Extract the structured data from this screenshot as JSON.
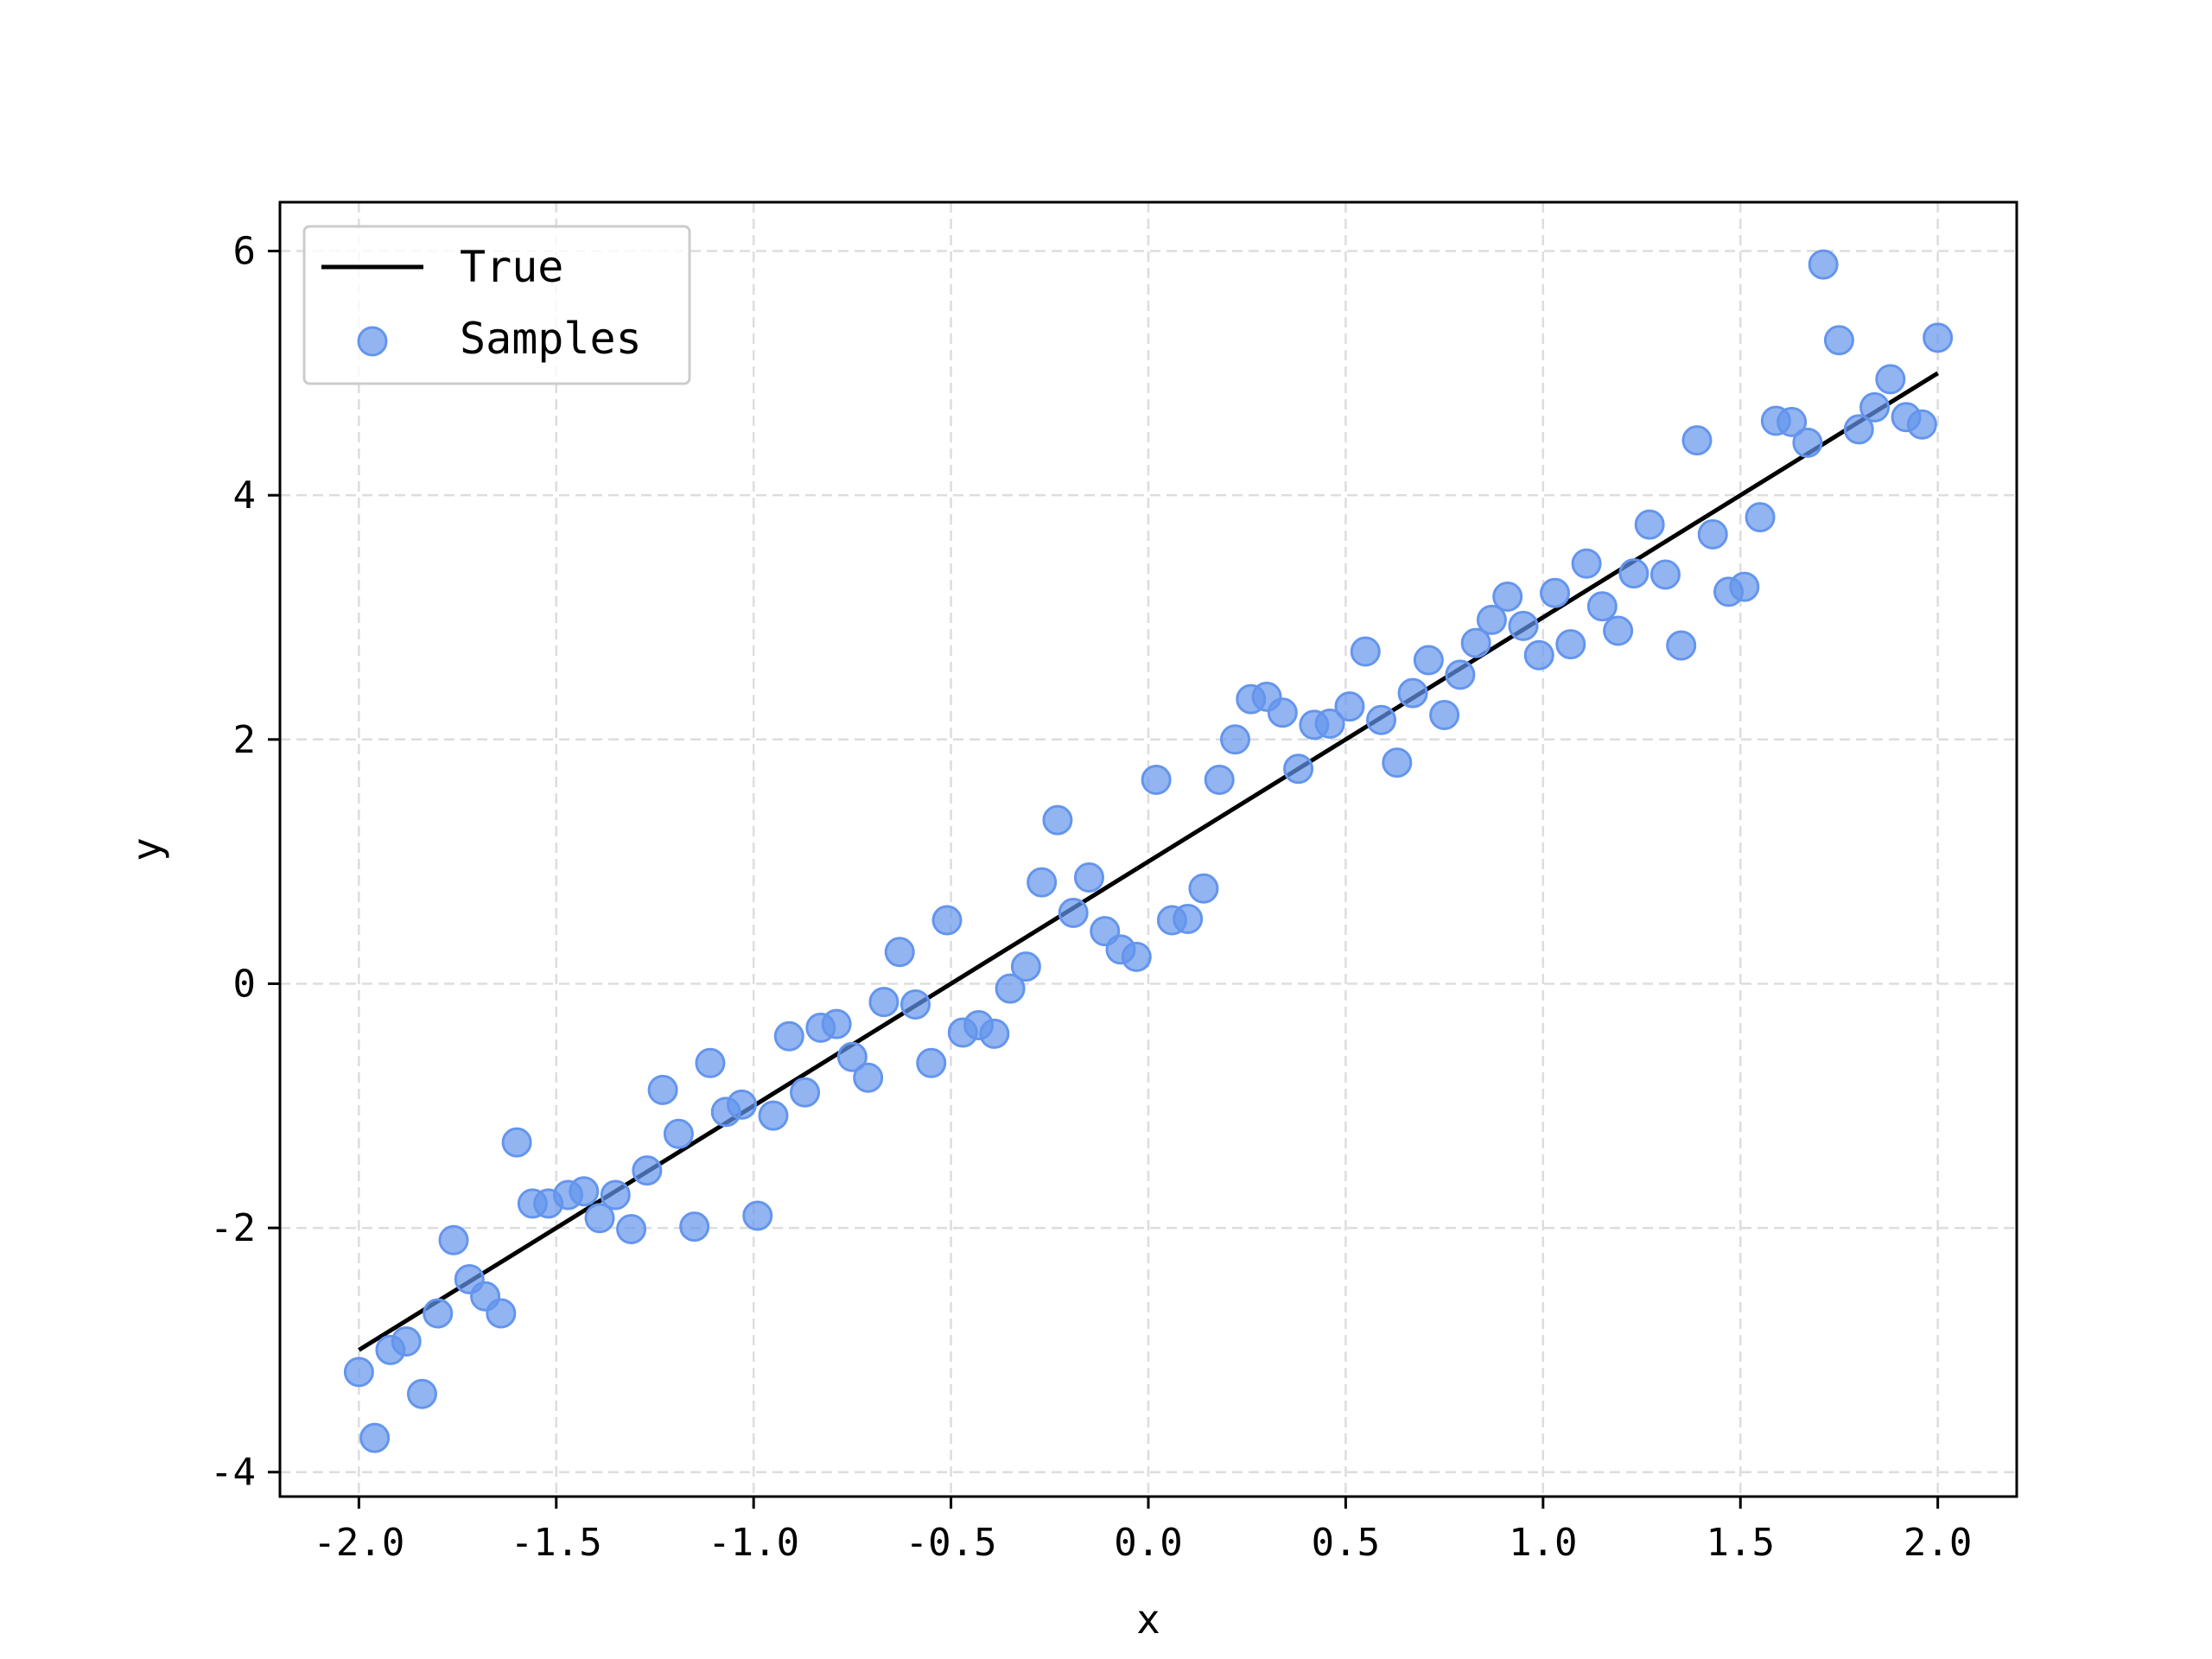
{
  "chart_data": {
    "type": "scatter",
    "xlabel": "x",
    "ylabel": "y",
    "xlim": [
      -2.2,
      2.2
    ],
    "ylim": [
      -4.2,
      6.4
    ],
    "xticks": [
      -2.0,
      -1.5,
      -1.0,
      -0.5,
      0.0,
      0.5,
      1.0,
      1.5,
      2.0
    ],
    "xtick_labels": [
      "-2.0",
      "-1.5",
      "-1.0",
      "-0.5",
      "0.0",
      "0.5",
      "1.0",
      "1.5",
      "2.0"
    ],
    "yticks": [
      -4,
      -2,
      0,
      2,
      4,
      6
    ],
    "ytick_labels": [
      "-4",
      "-2",
      "0",
      "2",
      "4",
      "6"
    ],
    "grid": true,
    "legend_position": "top-left",
    "colors": {
      "line": "#000000",
      "samples": "#6495ED",
      "grid": "#dddddd"
    },
    "series": [
      {
        "name": "True",
        "kind": "line",
        "x": [
          -2.0,
          2.0
        ],
        "y": [
          -3.0,
          5.0
        ]
      },
      {
        "name": "Samples",
        "kind": "scatter",
        "points": [
          [
            -2.0,
            -3.18
          ],
          [
            -1.96,
            -3.72
          ],
          [
            -1.92,
            -3.0
          ],
          [
            -1.88,
            -2.93
          ],
          [
            -1.84,
            -3.36
          ],
          [
            -1.8,
            -2.7
          ],
          [
            -1.76,
            -2.1
          ],
          [
            -1.72,
            -2.42
          ],
          [
            -1.68,
            -2.56
          ],
          [
            -1.64,
            -2.7
          ],
          [
            -1.6,
            -1.3
          ],
          [
            -1.56,
            -1.8
          ],
          [
            -1.52,
            -1.8
          ],
          [
            -1.47,
            -1.73
          ],
          [
            -1.43,
            -1.7
          ],
          [
            -1.39,
            -1.92
          ],
          [
            -1.35,
            -1.73
          ],
          [
            -1.31,
            -2.01
          ],
          [
            -1.27,
            -1.53
          ],
          [
            -1.23,
            -0.87
          ],
          [
            -1.19,
            -1.23
          ],
          [
            -1.15,
            -1.99
          ],
          [
            -1.11,
            -0.65
          ],
          [
            -1.07,
            -1.05
          ],
          [
            -1.03,
            -0.99
          ],
          [
            -0.99,
            -1.9
          ],
          [
            -0.95,
            -1.08
          ],
          [
            -0.91,
            -0.43
          ],
          [
            -0.87,
            -0.89
          ],
          [
            -0.83,
            -0.36
          ],
          [
            -0.79,
            -0.33
          ],
          [
            -0.75,
            -0.6
          ],
          [
            -0.71,
            -0.77
          ],
          [
            -0.67,
            -0.15
          ],
          [
            -0.63,
            0.26
          ],
          [
            -0.59,
            -0.17
          ],
          [
            -0.55,
            -0.65
          ],
          [
            -0.51,
            0.52
          ],
          [
            -0.47,
            -0.4
          ],
          [
            -0.43,
            -0.34
          ],
          [
            -0.39,
            -0.41
          ],
          [
            -0.35,
            -0.04
          ],
          [
            -0.31,
            0.14
          ],
          [
            -0.27,
            0.83
          ],
          [
            -0.23,
            1.34
          ],
          [
            -0.19,
            0.58
          ],
          [
            -0.15,
            0.87
          ],
          [
            -0.11,
            0.43
          ],
          [
            -0.07,
            0.28
          ],
          [
            -0.03,
            0.22
          ],
          [
            0.02,
            1.67
          ],
          [
            0.06,
            0.52
          ],
          [
            0.1,
            0.53
          ],
          [
            0.14,
            0.78
          ],
          [
            0.18,
            1.67
          ],
          [
            0.22,
            2.0
          ],
          [
            0.26,
            2.33
          ],
          [
            0.3,
            2.35
          ],
          [
            0.34,
            2.22
          ],
          [
            0.38,
            1.76
          ],
          [
            0.42,
            2.12
          ],
          [
            0.46,
            2.13
          ],
          [
            0.51,
            2.27
          ],
          [
            0.55,
            2.72
          ],
          [
            0.59,
            2.16
          ],
          [
            0.63,
            1.81
          ],
          [
            0.67,
            2.38
          ],
          [
            0.71,
            2.65
          ],
          [
            0.75,
            2.2
          ],
          [
            0.79,
            2.53
          ],
          [
            0.83,
            2.79
          ],
          [
            0.87,
            2.98
          ],
          [
            0.91,
            3.17
          ],
          [
            0.95,
            2.93
          ],
          [
            0.99,
            2.69
          ],
          [
            1.03,
            3.2
          ],
          [
            1.07,
            2.78
          ],
          [
            1.11,
            3.44
          ],
          [
            1.15,
            3.09
          ],
          [
            1.19,
            2.89
          ],
          [
            1.23,
            3.36
          ],
          [
            1.27,
            3.76
          ],
          [
            1.31,
            3.35
          ],
          [
            1.35,
            2.77
          ],
          [
            1.39,
            4.45
          ],
          [
            1.43,
            3.68
          ],
          [
            1.47,
            3.21
          ],
          [
            1.51,
            3.25
          ],
          [
            1.55,
            3.82
          ],
          [
            1.59,
            4.61
          ],
          [
            1.63,
            4.6
          ],
          [
            1.67,
            4.43
          ],
          [
            1.71,
            5.89
          ],
          [
            1.75,
            5.27
          ],
          [
            1.8,
            4.54
          ],
          [
            1.84,
            4.72
          ],
          [
            1.88,
            4.95
          ],
          [
            1.92,
            4.64
          ],
          [
            1.96,
            4.58
          ],
          [
            2.0,
            5.29
          ]
        ]
      }
    ]
  }
}
